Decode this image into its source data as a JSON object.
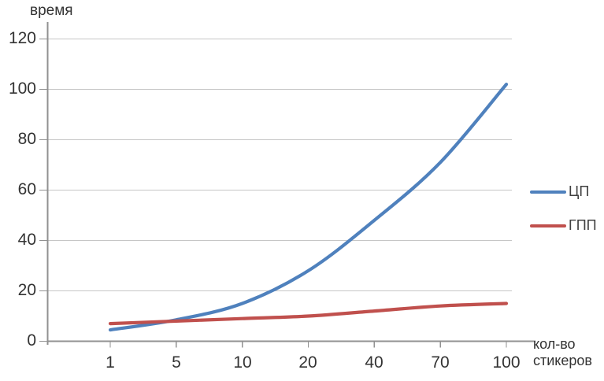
{
  "chart_data": {
    "type": "line",
    "title": "",
    "ylabel": "время",
    "xlabel": "кол-во стикеров",
    "xlabel_lines": [
      "кол-во",
      "стикеров"
    ],
    "categories": [
      "1",
      "5",
      "10",
      "20",
      "40",
      "70",
      "100"
    ],
    "series": [
      {
        "name": "ЦП",
        "color": "#4F81BD",
        "values": [
          4.5,
          8.5,
          15,
          28,
          48,
          71,
          102
        ]
      },
      {
        "name": "ГПП",
        "color": "#C0504D",
        "values": [
          7,
          8,
          9,
          10,
          12,
          14,
          15
        ]
      }
    ],
    "ylim": [
      0,
      120
    ],
    "ytick_step": 20,
    "ytick_labels": [
      "120",
      "100",
      "80",
      "60",
      "40",
      "20",
      "0"
    ],
    "grid": "horizontal",
    "legend_position": "right",
    "axis_color": "#919191",
    "gridline_color": "#c6c6c6",
    "text_color": "#333333"
  }
}
